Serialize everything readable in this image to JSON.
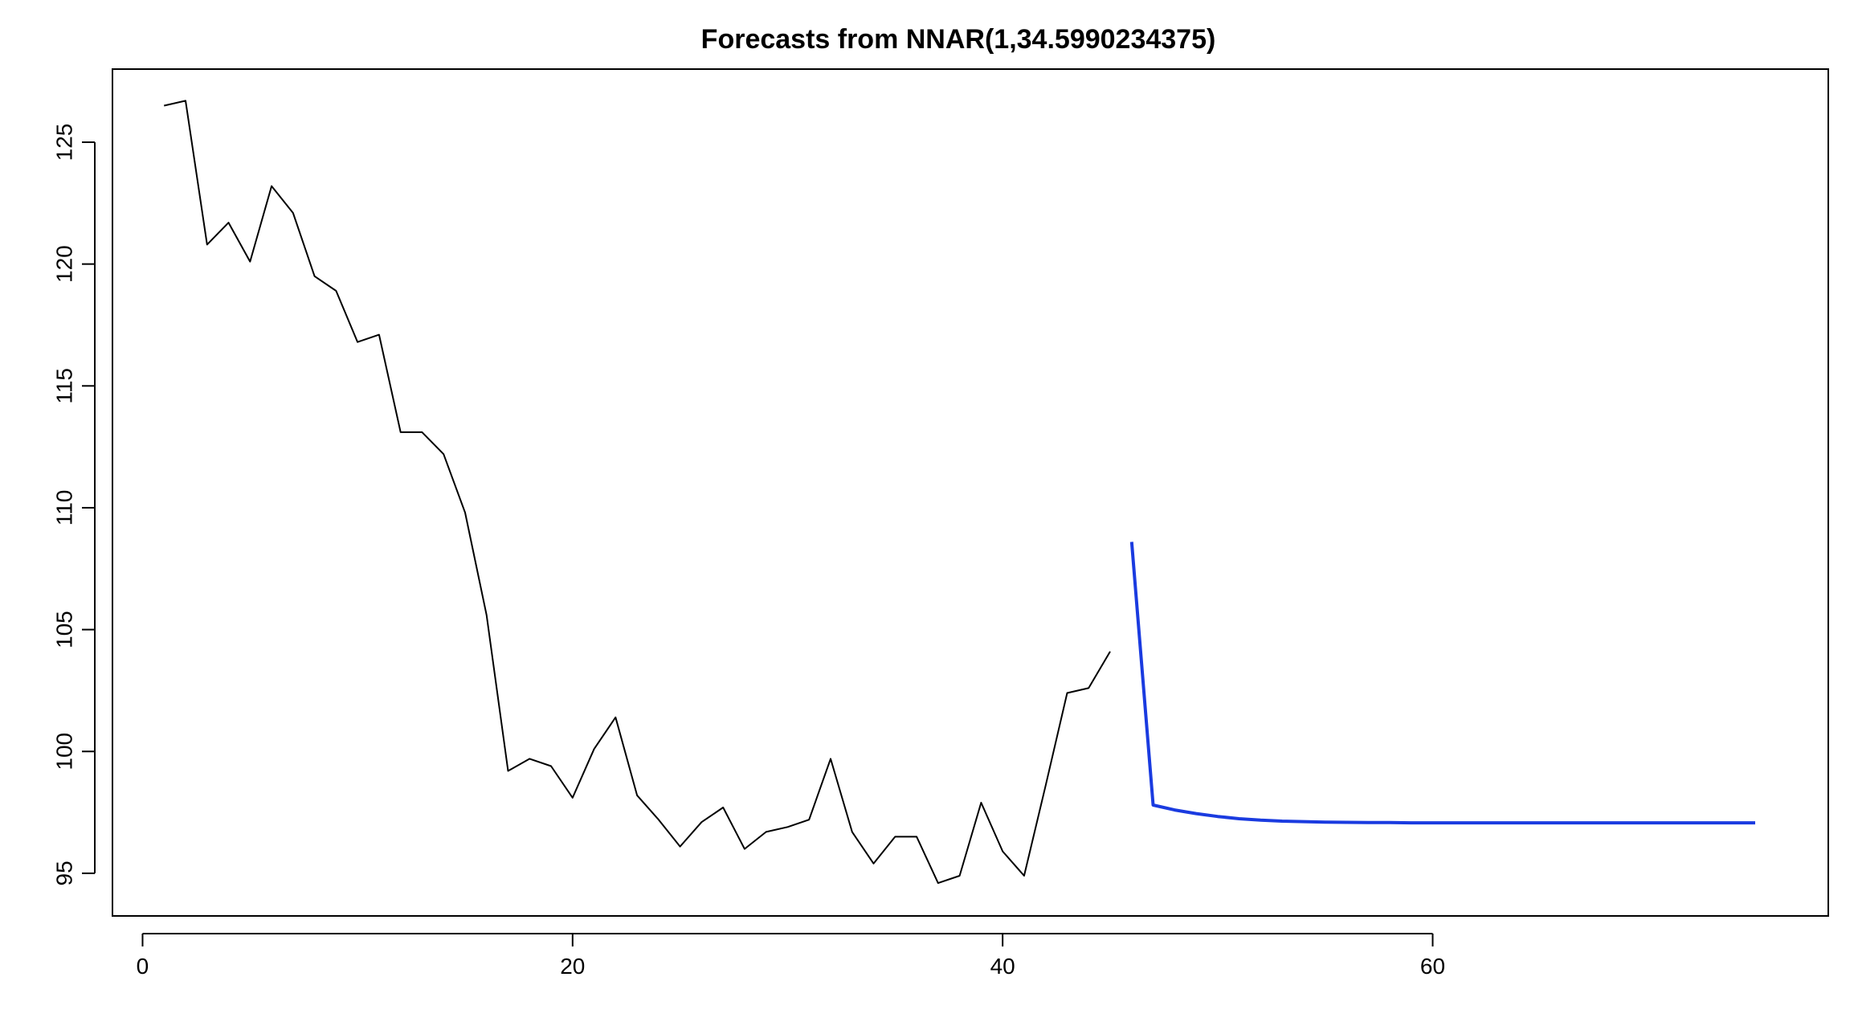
{
  "chart_data": {
    "type": "line",
    "title": "Forecasts from NNAR(1,34.5990234375)",
    "xlabel": "",
    "ylabel": "",
    "xlim": [
      -1.4,
      78.4
    ],
    "ylim": [
      93.25,
      128.0
    ],
    "x_ticks": [
      0,
      20,
      40,
      60
    ],
    "y_ticks": [
      95,
      100,
      105,
      110,
      115,
      120,
      125
    ],
    "grid": false,
    "legend": "none",
    "series": [
      {
        "color": "#000000",
        "x": [
          1,
          2,
          3,
          4,
          5,
          6,
          7,
          8,
          9,
          10,
          11,
          12,
          13,
          14,
          15,
          16,
          17,
          18,
          19,
          20,
          21,
          22,
          23,
          24,
          25,
          26,
          27,
          28,
          29,
          30,
          31,
          32,
          33,
          34,
          35,
          36,
          37,
          38,
          39,
          40,
          41,
          42,
          43,
          44,
          45
        ],
        "y": [
          126.5,
          126.7,
          120.8,
          121.7,
          120.1,
          123.2,
          122.1,
          119.5,
          118.9,
          116.8,
          117.1,
          113.1,
          113.1,
          112.2,
          109.8,
          105.6,
          99.2,
          99.7,
          99.4,
          98.1,
          100.1,
          101.4,
          98.2,
          97.2,
          96.1,
          97.1,
          97.7,
          96.0,
          96.7,
          96.9,
          97.2,
          99.7,
          96.7,
          95.4,
          96.5,
          96.5,
          94.6,
          94.9,
          97.9,
          95.9,
          94.9,
          98.6,
          102.4,
          102.6,
          104.1
        ]
      },
      {
        "color": "#1a3be0",
        "x": [
          46,
          47,
          48,
          49,
          50,
          51,
          52,
          53,
          54,
          55,
          56,
          57,
          58,
          59,
          60,
          61,
          62,
          63,
          64,
          65,
          66,
          67,
          68,
          69,
          70,
          71,
          72,
          73,
          74,
          75
        ],
        "y": [
          108.6,
          97.8,
          97.6,
          97.45,
          97.33,
          97.24,
          97.18,
          97.14,
          97.12,
          97.1,
          97.09,
          97.08,
          97.08,
          97.07,
          97.07,
          97.07,
          97.07,
          97.07,
          97.07,
          97.07,
          97.07,
          97.07,
          97.07,
          97.07,
          97.07,
          97.07,
          97.07,
          97.07,
          97.07,
          97.07
        ]
      }
    ]
  }
}
